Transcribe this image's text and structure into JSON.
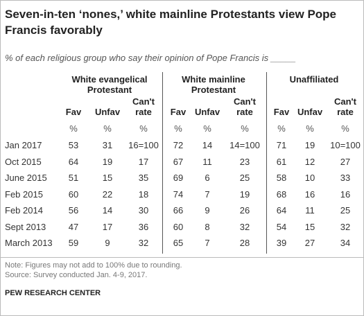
{
  "header": {
    "title": "Seven-in-ten ‘nones,’ white mainline Protestants view Pope Francis favorably",
    "subtitle": "% of each religious group who say their opinion of Pope Francis is _____"
  },
  "table": {
    "groups": [
      "White evangelical Protestant",
      "White mainline Protestant",
      "Unaffiliated"
    ],
    "columns": [
      "Fav",
      "Unfav",
      "Can't rate",
      "Fav",
      "Unfav",
      "Can't rate",
      "Fav",
      "Unfav",
      "Can't rate"
    ],
    "units": [
      "%",
      "%",
      "%",
      "%",
      "%",
      "%",
      "%",
      "%",
      "%"
    ],
    "rows": [
      {
        "label": "Jan 2017",
        "cells": [
          53,
          31,
          "16=100",
          72,
          14,
          "14=100",
          71,
          19,
          "10=100"
        ]
      },
      {
        "label": "Oct 2015",
        "cells": [
          64,
          19,
          17,
          67,
          11,
          23,
          61,
          12,
          27
        ]
      },
      {
        "label": "June 2015",
        "cells": [
          51,
          15,
          35,
          69,
          6,
          25,
          58,
          10,
          33
        ]
      },
      {
        "label": "Feb 2015",
        "cells": [
          60,
          22,
          18,
          74,
          7,
          19,
          68,
          16,
          16
        ]
      },
      {
        "label": "Feb 2014",
        "cells": [
          56,
          14,
          30,
          66,
          9,
          26,
          64,
          11,
          25
        ]
      },
      {
        "label": "Sept 2013",
        "cells": [
          47,
          17,
          36,
          60,
          8,
          32,
          54,
          15,
          32
        ]
      },
      {
        "label": "March 2013",
        "cells": [
          59,
          9,
          32,
          65,
          7,
          28,
          39,
          27,
          34
        ]
      }
    ]
  },
  "notes": [
    "Note: Figures may not add to 100% due to rounding.",
    "Source: Survey conducted Jan. 4-9, 2017."
  ],
  "footer": "PEW RESEARCH CENTER"
}
